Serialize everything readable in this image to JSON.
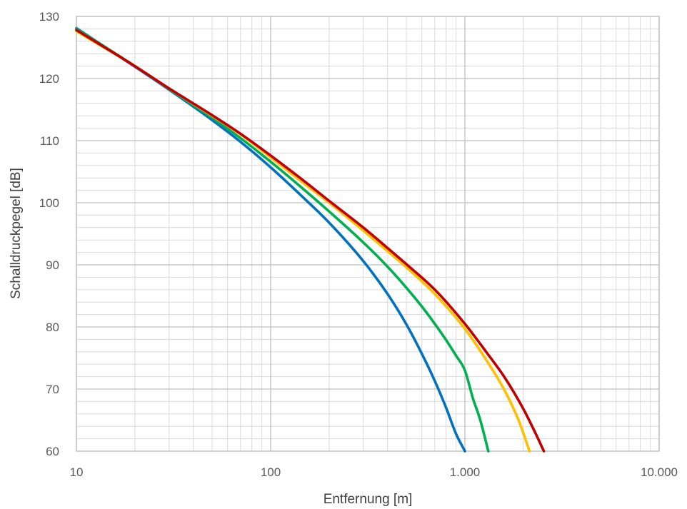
{
  "chart_data": {
    "type": "line",
    "title": "",
    "xlabel": "Entfernung [m]",
    "ylabel": "Schalldruckpegel [dB]",
    "xscale": "log",
    "xlim": [
      10,
      10000
    ],
    "ylim": [
      60,
      130
    ],
    "x_ticks": [
      {
        "value": 10,
        "label": "10"
      },
      {
        "value": 100,
        "label": "100"
      },
      {
        "value": 1000,
        "label": "1.000"
      },
      {
        "value": 10000,
        "label": "10.000"
      }
    ],
    "y_ticks": [
      {
        "value": 60,
        "label": "60"
      },
      {
        "value": 70,
        "label": "70"
      },
      {
        "value": 80,
        "label": "80"
      },
      {
        "value": 90,
        "label": "90"
      },
      {
        "value": 100,
        "label": "100"
      },
      {
        "value": 110,
        "label": "110"
      },
      {
        "value": 120,
        "label": "120"
      },
      {
        "value": 130,
        "label": "130"
      }
    ],
    "grid": true,
    "legend": "none",
    "series": [
      {
        "color": "#0070C0",
        "x": [
          10,
          20,
          30,
          50,
          70,
          100,
          150,
          200,
          300,
          400,
          500,
          600,
          700,
          800,
          900,
          1000
        ],
        "y": [
          128.1,
          121.9,
          118.2,
          113.3,
          109.8,
          105.7,
          100.6,
          96.8,
          90.6,
          85.3,
          80.4,
          75.7,
          71.3,
          67.0,
          62.8,
          60.0
        ]
      },
      {
        "color": "#00B050",
        "x": [
          10,
          20,
          30,
          50,
          70,
          100,
          150,
          200,
          300,
          400,
          500,
          600,
          700,
          800,
          900,
          1000,
          1100,
          1200,
          1320
        ],
        "y": [
          128.0,
          122.0,
          118.3,
          113.7,
          110.4,
          106.6,
          102.0,
          98.6,
          93.6,
          89.7,
          86.3,
          83.3,
          80.5,
          77.9,
          75.4,
          73.0,
          68.5,
          65.0,
          60.0
        ]
      },
      {
        "color": "#FFC000",
        "x": [
          10,
          20,
          30,
          50,
          70,
          100,
          150,
          200,
          300,
          400,
          500,
          700,
          1000,
          1300,
          1600,
          1900,
          2150
        ],
        "y": [
          127.6,
          122.0,
          118.4,
          114.0,
          111.0,
          107.3,
          103.0,
          100.0,
          95.5,
          92.2,
          89.6,
          85.3,
          79.7,
          74.5,
          69.8,
          64.8,
          60.0
        ]
      },
      {
        "color": "#C00000",
        "x": [
          10,
          20,
          30,
          50,
          70,
          100,
          150,
          200,
          300,
          400,
          500,
          700,
          1000,
          1300,
          1600,
          2000,
          2300,
          2550
        ],
        "y": [
          127.8,
          122.0,
          118.4,
          114.1,
          111.1,
          107.6,
          103.4,
          100.3,
          96.0,
          92.7,
          90.1,
          86.0,
          80.5,
          75.8,
          71.9,
          66.8,
          63.0,
          60.0
        ]
      }
    ]
  }
}
